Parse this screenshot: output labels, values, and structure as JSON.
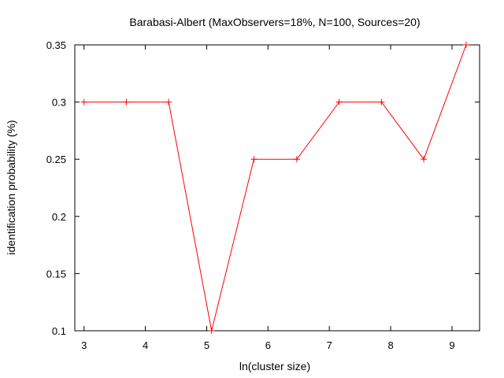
{
  "chart_data": {
    "type": "line",
    "title": "Barabasi-Albert (MaxObservers=18%, N=100, Sources=20)",
    "xlabel": "ln(cluster size)",
    "ylabel": "identification probability (%)",
    "xlim": [
      2.85,
      9.45
    ],
    "ylim": [
      0.1,
      0.35
    ],
    "xticks": [
      "3",
      "4",
      "5",
      "6",
      "7",
      "8",
      "9"
    ],
    "yticks": [
      "0.1",
      "0.15",
      "0.2",
      "0.25",
      "0.3",
      "0.35"
    ],
    "grid": false,
    "legend": "none",
    "series": [
      {
        "color": "#ff0000",
        "marker": "plus",
        "x": [
          3.0,
          3.69,
          4.38,
          5.08,
          5.77,
          6.47,
          7.16,
          7.85,
          8.54,
          9.23
        ],
        "y": [
          0.3,
          0.3,
          0.3,
          0.1,
          0.25,
          0.25,
          0.3,
          0.3,
          0.25,
          0.35
        ]
      }
    ]
  }
}
